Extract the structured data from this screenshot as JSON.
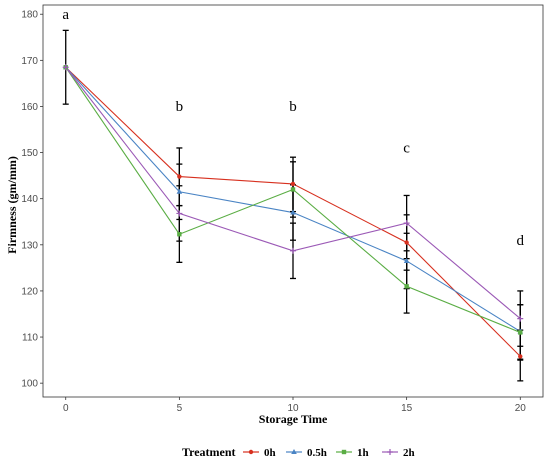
{
  "chart_data": {
    "type": "line",
    "x": [
      0,
      5,
      10,
      15,
      20
    ],
    "xlabel": "Storage Time",
    "ylabel": "Firmness (gm/mm)",
    "xlim": [
      -1,
      21
    ],
    "ylim": [
      97,
      182
    ],
    "x_ticks": [
      0,
      5,
      10,
      15,
      20
    ],
    "y_ticks": [
      100,
      110,
      120,
      130,
      140,
      150,
      160,
      170,
      180
    ],
    "grid": false,
    "legend_title": "Treatment",
    "legend_position": "bottom",
    "series": [
      {
        "name": "0h",
        "color": "#d7301f",
        "marker": "circle",
        "values": [
          168.5,
          144.8,
          143.2,
          130.5,
          105.8
        ]
      },
      {
        "name": "0.5h",
        "color": "#4a84c4",
        "marker": "triangle",
        "values": [
          168.5,
          141.5,
          137.0,
          126.5,
          111.2
        ]
      },
      {
        "name": "1h",
        "color": "#5aad44",
        "marker": "square",
        "values": [
          168.5,
          132.3,
          142.0,
          121.0,
          111.0
        ]
      },
      {
        "name": "2h",
        "color": "#9b59b6",
        "marker": "plus",
        "values": [
          168.5,
          136.8,
          128.7,
          134.7,
          114.0
        ]
      }
    ],
    "error_bars": [
      {
        "x": 0,
        "y": 168.5,
        "low": 160.5,
        "high": 176.5
      },
      {
        "x": 5,
        "y": 144.8,
        "low": 138.5,
        "high": 151.0
      },
      {
        "x": 5,
        "y": 141.5,
        "low": 135.5,
        "high": 147.5
      },
      {
        "x": 5,
        "y": 132.3,
        "low": 126.2,
        "high": 138.5
      },
      {
        "x": 5,
        "y": 136.8,
        "low": 130.8,
        "high": 142.8
      },
      {
        "x": 10,
        "y": 143.2,
        "low": 137.2,
        "high": 149.0
      },
      {
        "x": 10,
        "y": 137.0,
        "low": 131.0,
        "high": 143.0
      },
      {
        "x": 10,
        "y": 142.0,
        "low": 136.0,
        "high": 148.0
      },
      {
        "x": 10,
        "y": 128.7,
        "low": 122.7,
        "high": 134.7
      },
      {
        "x": 15,
        "y": 130.5,
        "low": 124.5,
        "high": 136.5
      },
      {
        "x": 15,
        "y": 126.5,
        "low": 120.5,
        "high": 132.5
      },
      {
        "x": 15,
        "y": 121.0,
        "low": 115.2,
        "high": 127.0
      },
      {
        "x": 15,
        "y": 134.7,
        "low": 128.7,
        "high": 140.7
      },
      {
        "x": 20,
        "y": 105.8,
        "low": 100.5,
        "high": 111.5
      },
      {
        "x": 20,
        "y": 111.2,
        "low": 105.2,
        "high": 117.0
      },
      {
        "x": 20,
        "y": 111.0,
        "low": 105.0,
        "high": 117.0
      },
      {
        "x": 20,
        "y": 114.0,
        "low": 108.0,
        "high": 120.0
      }
    ],
    "annotations": [
      {
        "text": "a",
        "x": 0,
        "y": 179
      },
      {
        "text": "b",
        "x": 5,
        "y": 159
      },
      {
        "text": "b",
        "x": 10,
        "y": 159
      },
      {
        "text": "c",
        "x": 15,
        "y": 150
      },
      {
        "text": "d",
        "x": 20,
        "y": 130
      }
    ]
  }
}
